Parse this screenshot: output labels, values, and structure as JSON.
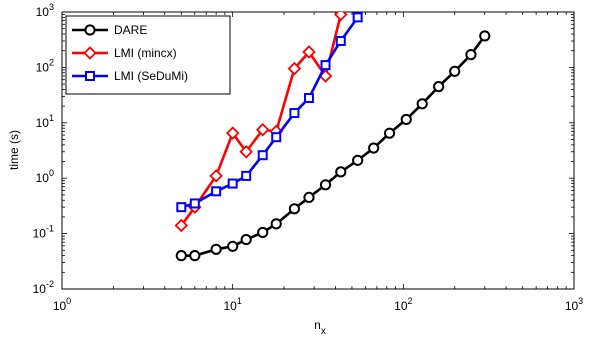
{
  "chart_data": {
    "type": "line",
    "title": "",
    "xlabel": "n",
    "xlabel_subscript": "x",
    "ylabel": "time (s)",
    "xscale": "log",
    "yscale": "log",
    "xlim": [
      1,
      1000
    ],
    "ylim": [
      0.01,
      1000
    ],
    "xticks": [
      {
        "base": "10",
        "exp": "0",
        "value": 1
      },
      {
        "base": "10",
        "exp": "1",
        "value": 10
      },
      {
        "base": "10",
        "exp": "2",
        "value": 100
      },
      {
        "base": "10",
        "exp": "3",
        "value": 1000
      }
    ],
    "yticks": [
      {
        "base": "10",
        "exp": "-2",
        "value": 0.01
      },
      {
        "base": "10",
        "exp": "-1",
        "value": 0.1
      },
      {
        "base": "10",
        "exp": "0",
        "value": 1
      },
      {
        "base": "10",
        "exp": "1",
        "value": 10
      },
      {
        "base": "10",
        "exp": "2",
        "value": 100
      },
      {
        "base": "10",
        "exp": "3",
        "value": 1000
      }
    ],
    "grid": false,
    "legend_position": "top-left",
    "series": [
      {
        "name": "DARE",
        "color": "#000000",
        "marker": "circle",
        "x": [
          5,
          6,
          8,
          10,
          12,
          15,
          18,
          23,
          28,
          35,
          43,
          54,
          67,
          83,
          104,
          129,
          161,
          200,
          249,
          300
        ],
        "y": [
          0.04,
          0.04,
          0.052,
          0.059,
          0.078,
          0.105,
          0.15,
          0.28,
          0.45,
          0.76,
          1.3,
          2.1,
          3.5,
          6.5,
          11.5,
          22,
          45,
          85,
          170,
          370
        ]
      },
      {
        "name": "LMI (mincx)",
        "color": "#ff0000",
        "marker": "diamond",
        "x": [
          5,
          6,
          8,
          10,
          12,
          15,
          18,
          23,
          28,
          35,
          43
        ],
        "y": [
          0.14,
          0.3,
          1.1,
          6.5,
          3.0,
          7.5,
          7.0,
          95,
          190,
          70,
          900
        ]
      },
      {
        "name": "LMI (SeDuMi)",
        "color": "#0000ff",
        "marker": "square",
        "x": [
          5,
          6,
          8,
          10,
          12,
          15,
          18,
          23,
          28,
          35,
          43,
          54
        ],
        "y": [
          0.3,
          0.35,
          0.58,
          0.8,
          1.1,
          2.6,
          5.5,
          15,
          28,
          110,
          300,
          800
        ]
      }
    ]
  }
}
